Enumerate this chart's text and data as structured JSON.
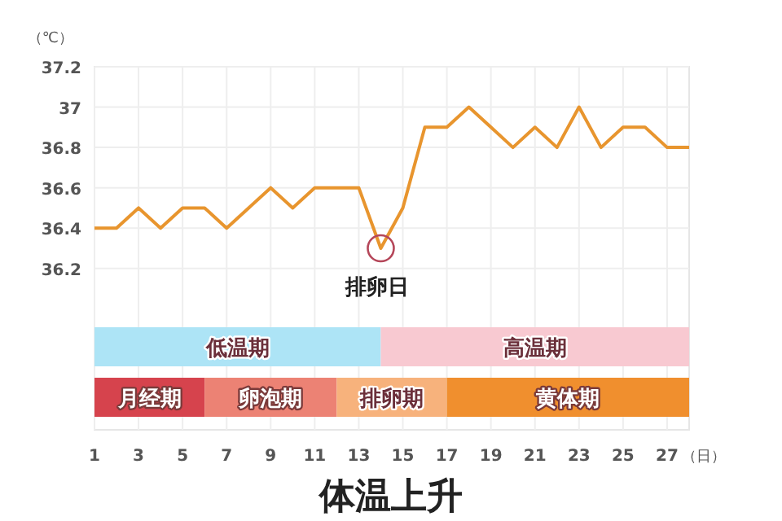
{
  "chart_data": {
    "type": "line",
    "xlabel": "（日）",
    "ylabel": "（℃）",
    "x": [
      1,
      2,
      3,
      4,
      5,
      6,
      7,
      8,
      9,
      10,
      11,
      12,
      13,
      14,
      15,
      16,
      17,
      18,
      19,
      20,
      21,
      22,
      23,
      24,
      25,
      26,
      27,
      28
    ],
    "series": [
      {
        "color": "#e8952e",
        "values": [
          36.4,
          36.4,
          36.5,
          36.4,
          36.5,
          36.5,
          36.4,
          36.5,
          36.6,
          36.5,
          36.6,
          36.6,
          36.6,
          36.3,
          36.5,
          36.9,
          36.9,
          37.0,
          36.9,
          36.8,
          36.9,
          36.8,
          37.0,
          36.8,
          36.9,
          36.9,
          36.8,
          36.8
        ]
      }
    ],
    "xlim": [
      1,
      28
    ],
    "ylim": [
      35.4,
      37.2
    ],
    "xticks": [
      1,
      3,
      5,
      7,
      9,
      11,
      13,
      15,
      17,
      19,
      21,
      23,
      25,
      27
    ],
    "yticks": [
      36.2,
      36.4,
      36.6,
      36.8,
      37,
      37.2
    ],
    "grid": true,
    "annotations": [
      {
        "text": "排卵日",
        "x": 14,
        "y": 36.3
      },
      "体温上升"
    ],
    "bands": [
      {
        "axis": "x",
        "from": 1,
        "to": 14,
        "label": "低温期",
        "color": "#ade4f6"
      },
      {
        "axis": "x",
        "from": 14,
        "to": 28,
        "label": "高温期",
        "color": "#f8c9d1"
      },
      {
        "axis": "x",
        "from": 1,
        "to": 6,
        "label": "月经期",
        "color": "#d6434d"
      },
      {
        "axis": "x",
        "from": 6,
        "to": 12,
        "label": "卵泡期",
        "color": "#ec8274"
      },
      {
        "axis": "x",
        "from": 12,
        "to": 17,
        "label": "排卵期",
        "color": "#f7b27c"
      },
      {
        "axis": "x",
        "from": 17,
        "to": 28,
        "label": "黄体期",
        "color": "#f08f2e"
      }
    ]
  }
}
